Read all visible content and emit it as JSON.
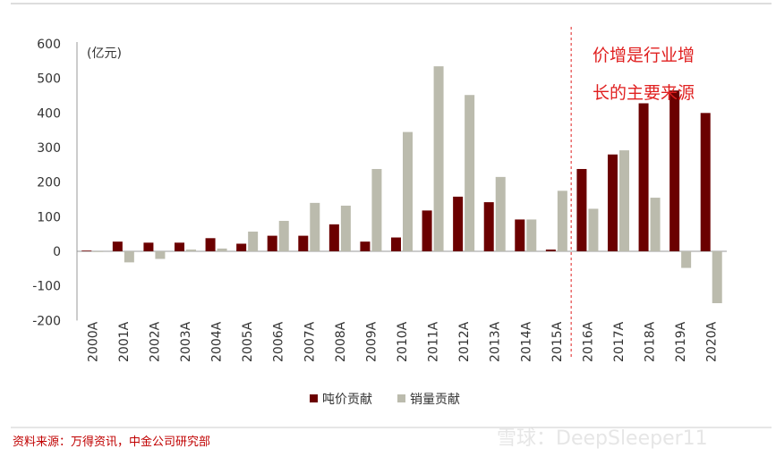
{
  "chart_data": {
    "type": "bar",
    "unit_label": "(亿元)",
    "categories": [
      "2000A",
      "2001A",
      "2002A",
      "2003A",
      "2004A",
      "2005A",
      "2006A",
      "2007A",
      "2008A",
      "2009A",
      "2010A",
      "2011A",
      "2012A",
      "2013A",
      "2014A",
      "2015A",
      "2016A",
      "2017A",
      "2018A",
      "2019A",
      "2020A"
    ],
    "series": [
      {
        "name": "吨价贡献",
        "color": "#6b0000",
        "values": [
          2,
          28,
          25,
          25,
          38,
          22,
          45,
          45,
          78,
          28,
          40,
          118,
          158,
          142,
          92,
          5,
          238,
          280,
          428,
          465,
          400
        ]
      },
      {
        "name": "销量贡献",
        "color": "#bbbbad",
        "values": [
          0,
          -32,
          -22,
          5,
          8,
          57,
          88,
          140,
          132,
          238,
          345,
          535,
          452,
          215,
          92,
          175,
          123,
          292,
          155,
          -48,
          -150
        ]
      }
    ],
    "yticks": [
      600,
      500,
      400,
      300,
      200,
      100,
      0,
      -100,
      -200
    ],
    "ylim": [
      -200,
      600
    ],
    "annotation_lines": [
      "价增是行业增",
      "长的主要来源"
    ],
    "divider_after": "2015A",
    "legend_position": "bottom-center",
    "grid": false
  },
  "source": "资料来源：万得资讯，中金公司研究部",
  "watermark": "雪球：DeepSleeper11"
}
